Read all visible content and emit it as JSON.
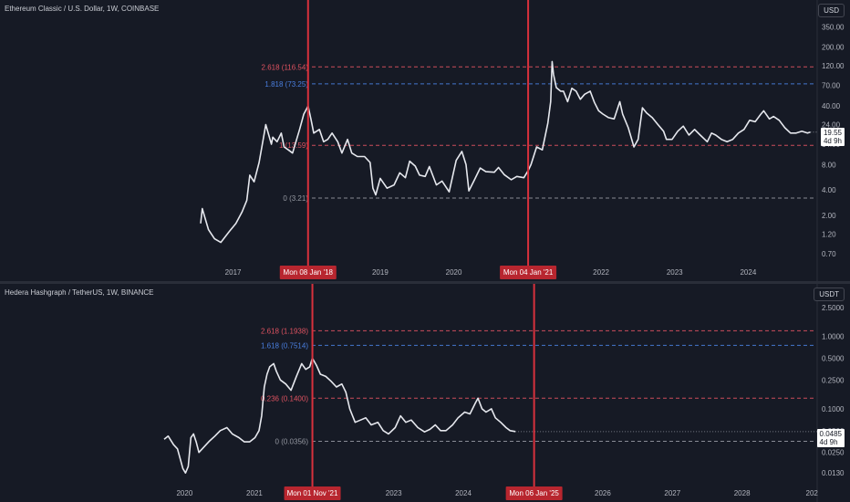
{
  "chart_data": [
    {
      "type": "line",
      "title": "Ethereum Classic / U.S. Dollar, 1W, COINBASE",
      "currency": "USD",
      "scale": "log",
      "ylim": [
        0.6,
        400
      ],
      "x_ticks": [
        "2017",
        "2019",
        "2020",
        "2022",
        "2023",
        "2024"
      ],
      "x_tick_dates": [
        "2017-01-01",
        "2019-01-01",
        "2020-01-01",
        "2022-01-01",
        "2023-01-01",
        "2024-01-01"
      ],
      "y_ticks": [
        "350.00",
        "200.00",
        "120.00",
        "70.00",
        "40.00",
        "24.00",
        "14.00",
        "8.00",
        "4.00",
        "2.00",
        "1.20",
        "0.70"
      ],
      "last_price": "19.55",
      "countdown": "4d 9h",
      "fib_levels": [
        {
          "label": "2.618 (116.54)",
          "value": 116.54,
          "color": "#e05361"
        },
        {
          "label": "1.818 (73.25)",
          "value": 73.25,
          "color": "#4a7fe0"
        },
        {
          "label": "1 (13.59)",
          "value": 13.59,
          "color": "#e05361"
        },
        {
          "label": "0 (3.21)",
          "value": 3.21,
          "color": "#9598a1"
        }
      ],
      "vlines": [
        {
          "label": "Mon 08 Jan '18",
          "date": "2018-01-08"
        },
        {
          "label": "Mon 04 Jan '21",
          "date": "2021-01-04"
        }
      ],
      "series": [
        {
          "values": [
            [
              "2016-07-24",
              1.6
            ],
            [
              "2016-08-01",
              2.4
            ],
            [
              "2016-09-01",
              1.35
            ],
            [
              "2016-10-01",
              1.05
            ],
            [
              "2016-11-01",
              0.95
            ],
            [
              "2016-12-15",
              1.3
            ],
            [
              "2017-01-15",
              1.6
            ],
            [
              "2017-02-15",
              2.2
            ],
            [
              "2017-03-10",
              3.0
            ],
            [
              "2017-03-25",
              6.0
            ],
            [
              "2017-04-15",
              5.0
            ],
            [
              "2017-05-10",
              8.5
            ],
            [
              "2017-06-05",
              19
            ],
            [
              "2017-06-12",
              24
            ],
            [
              "2017-07-10",
              14
            ],
            [
              "2017-07-17",
              17
            ],
            [
              "2017-08-07",
              15
            ],
            [
              "2017-08-28",
              19
            ],
            [
              "2017-09-11",
              13
            ],
            [
              "2017-10-02",
              12
            ],
            [
              "2017-10-23",
              11
            ],
            [
              "2017-11-27",
              21
            ],
            [
              "2017-12-18",
              32
            ],
            [
              "2018-01-01",
              37
            ],
            [
              "2018-01-08",
              40
            ],
            [
              "2018-01-22",
              28
            ],
            [
              "2018-02-05",
              19
            ],
            [
              "2018-03-05",
              21
            ],
            [
              "2018-03-26",
              15
            ],
            [
              "2018-04-16",
              16
            ],
            [
              "2018-05-07",
              19
            ],
            [
              "2018-06-04",
              15
            ],
            [
              "2018-06-25",
              11
            ],
            [
              "2018-07-23",
              16
            ],
            [
              "2018-08-13",
              11
            ],
            [
              "2018-09-10",
              10
            ],
            [
              "2018-10-15",
              10
            ],
            [
              "2018-11-12",
              8.5
            ],
            [
              "2018-11-26",
              4.2
            ],
            [
              "2018-12-10",
              3.5
            ],
            [
              "2019-01-01",
              5.5
            ],
            [
              "2019-02-04",
              4.2
            ],
            [
              "2019-03-11",
              4.6
            ],
            [
              "2019-04-08",
              6.4
            ],
            [
              "2019-05-06",
              5.6
            ],
            [
              "2019-05-27",
              8.8
            ],
            [
              "2019-06-24",
              7.7
            ],
            [
              "2019-07-15",
              6.0
            ],
            [
              "2019-08-12",
              5.8
            ],
            [
              "2019-09-02",
              7.6
            ],
            [
              "2019-10-07",
              4.6
            ],
            [
              "2019-11-04",
              5.1
            ],
            [
              "2019-12-09",
              3.8
            ],
            [
              "2020-01-13",
              9.0
            ],
            [
              "2020-02-10",
              11.5
            ],
            [
              "2020-03-02",
              8.0
            ],
            [
              "2020-03-16",
              3.9
            ],
            [
              "2020-04-13",
              5.3
            ],
            [
              "2020-05-11",
              7.3
            ],
            [
              "2020-06-08",
              6.6
            ],
            [
              "2020-07-20",
              6.5
            ],
            [
              "2020-08-10",
              7.4
            ],
            [
              "2020-09-07",
              6.1
            ],
            [
              "2020-10-12",
              5.3
            ],
            [
              "2020-11-09",
              5.8
            ],
            [
              "2020-12-14",
              5.6
            ],
            [
              "2021-01-04",
              6.8
            ],
            [
              "2021-01-18",
              8.0
            ],
            [
              "2021-02-15",
              13
            ],
            [
              "2021-03-15",
              12
            ],
            [
              "2021-04-12",
              25
            ],
            [
              "2021-04-26",
              45
            ],
            [
              "2021-05-03",
              135
            ],
            [
              "2021-05-10",
              95
            ],
            [
              "2021-05-24",
              66
            ],
            [
              "2021-06-14",
              60
            ],
            [
              "2021-06-28",
              60
            ],
            [
              "2021-07-19",
              45
            ],
            [
              "2021-08-09",
              65
            ],
            [
              "2021-08-30",
              60
            ],
            [
              "2021-09-20",
              48
            ],
            [
              "2021-10-11",
              55
            ],
            [
              "2021-11-08",
              60
            ],
            [
              "2021-11-29",
              44
            ],
            [
              "2021-12-20",
              35
            ],
            [
              "2022-01-10",
              32
            ],
            [
              "2022-02-07",
              29
            ],
            [
              "2022-03-07",
              28
            ],
            [
              "2022-04-04",
              45
            ],
            [
              "2022-04-18",
              32
            ],
            [
              "2022-05-16",
              22
            ],
            [
              "2022-06-13",
              13
            ],
            [
              "2022-07-04",
              16
            ],
            [
              "2022-07-25",
              38
            ],
            [
              "2022-08-15",
              33
            ],
            [
              "2022-09-12",
              29
            ],
            [
              "2022-10-10",
              24
            ],
            [
              "2022-11-07",
              20
            ],
            [
              "2022-11-21",
              16
            ],
            [
              "2022-12-19",
              16
            ],
            [
              "2023-01-16",
              20
            ],
            [
              "2023-02-13",
              23
            ],
            [
              "2023-03-13",
              18
            ],
            [
              "2023-04-10",
              21
            ],
            [
              "2023-05-08",
              18
            ],
            [
              "2023-06-12",
              15
            ],
            [
              "2023-07-03",
              19
            ],
            [
              "2023-07-24",
              18
            ],
            [
              "2023-08-21",
              16
            ],
            [
              "2023-09-18",
              15
            ],
            [
              "2023-10-16",
              16
            ],
            [
              "2023-11-13",
              19
            ],
            [
              "2023-12-11",
              21
            ],
            [
              "2024-01-08",
              27
            ],
            [
              "2024-02-05",
              26
            ],
            [
              "2024-03-04",
              32
            ],
            [
              "2024-03-18",
              35
            ],
            [
              "2024-04-15",
              28
            ],
            [
              "2024-05-06",
              30
            ],
            [
              "2024-06-03",
              27
            ],
            [
              "2024-07-01",
              22
            ],
            [
              "2024-07-29",
              19
            ],
            [
              "2024-08-26",
              19
            ],
            [
              "2024-09-23",
              20
            ],
            [
              "2024-10-21",
              19
            ],
            [
              "2024-11-04",
              19.55
            ]
          ]
        }
      ]
    },
    {
      "type": "line",
      "title": "Hedera Hashgraph / TetherUS, 1W, BINANCE",
      "currency": "USDT",
      "scale": "log",
      "ylim": [
        0.011,
        2.8
      ],
      "x_ticks": [
        "2020",
        "2021",
        "2023",
        "2024",
        "2026",
        "2027",
        "2028",
        "202"
      ],
      "x_tick_dates": [
        "2020-01-01",
        "2021-01-01",
        "2023-01-01",
        "2024-01-01",
        "2026-01-01",
        "2027-01-01",
        "2028-01-01",
        "2029-01-01"
      ],
      "y_ticks": [
        "2.5000",
        "1.0000",
        "0.5000",
        "0.2500",
        "0.1000",
        "0.0500",
        "0.0250",
        "0.0130"
      ],
      "last_price": "0.0485",
      "countdown": "4d 9h",
      "fib_levels": [
        {
          "label": "2.618 (1.1938)",
          "value": 1.1938,
          "color": "#e05361"
        },
        {
          "label": "1.618 (0.7514)",
          "value": 0.7514,
          "color": "#4a7fe0"
        },
        {
          "label": "0.236 (0.1400)",
          "value": 0.14,
          "color": "#e05361"
        },
        {
          "label": "0 (0.0356)",
          "value": 0.0356,
          "color": "#9598a1"
        }
      ],
      "vlines": [
        {
          "label": "Mon 01 Nov '21",
          "date": "2021-11-01"
        },
        {
          "label": "Mon 06 Jan '25",
          "date": "2025-01-06"
        }
      ],
      "series": [
        {
          "values": [
            [
              "2019-09-16",
              0.038
            ],
            [
              "2019-10-07",
              0.042
            ],
            [
              "2019-11-04",
              0.032
            ],
            [
              "2019-11-25",
              0.028
            ],
            [
              "2019-12-23",
              0.015
            ],
            [
              "2020-01-06",
              0.013
            ],
            [
              "2020-01-20",
              0.016
            ],
            [
              "2020-02-03",
              0.04
            ],
            [
              "2020-02-17",
              0.045
            ],
            [
              "2020-03-02",
              0.035
            ],
            [
              "2020-03-16",
              0.025
            ],
            [
              "2020-04-13",
              0.03
            ],
            [
              "2020-05-11",
              0.036
            ],
            [
              "2020-06-08",
              0.042
            ],
            [
              "2020-07-06",
              0.05
            ],
            [
              "2020-08-10",
              0.055
            ],
            [
              "2020-09-07",
              0.045
            ],
            [
              "2020-10-12",
              0.04
            ],
            [
              "2020-11-09",
              0.035
            ],
            [
              "2020-12-07",
              0.035
            ],
            [
              "2021-01-04",
              0.04
            ],
            [
              "2021-01-25",
              0.05
            ],
            [
              "2021-02-08",
              0.08
            ],
            [
              "2021-02-22",
              0.2
            ],
            [
              "2021-03-08",
              0.3
            ],
            [
              "2021-03-22",
              0.38
            ],
            [
              "2021-04-12",
              0.42
            ],
            [
              "2021-04-26",
              0.33
            ],
            [
              "2021-05-17",
              0.25
            ],
            [
              "2021-06-14",
              0.22
            ],
            [
              "2021-07-12",
              0.18
            ],
            [
              "2021-08-09",
              0.28
            ],
            [
              "2021-09-06",
              0.42
            ],
            [
              "2021-09-27",
              0.35
            ],
            [
              "2021-10-18",
              0.38
            ],
            [
              "2021-11-01",
              0.5
            ],
            [
              "2021-11-22",
              0.4
            ],
            [
              "2021-12-13",
              0.3
            ],
            [
              "2022-01-10",
              0.28
            ],
            [
              "2022-02-07",
              0.24
            ],
            [
              "2022-03-07",
              0.2
            ],
            [
              "2022-04-04",
              0.22
            ],
            [
              "2022-04-25",
              0.17
            ],
            [
              "2022-05-16",
              0.1
            ],
            [
              "2022-06-13",
              0.065
            ],
            [
              "2022-07-11",
              0.07
            ],
            [
              "2022-08-08",
              0.075
            ],
            [
              "2022-09-05",
              0.06
            ],
            [
              "2022-10-10",
              0.065
            ],
            [
              "2022-11-07",
              0.05
            ],
            [
              "2022-12-05",
              0.045
            ],
            [
              "2023-01-09",
              0.055
            ],
            [
              "2023-02-06",
              0.08
            ],
            [
              "2023-03-06",
              0.065
            ],
            [
              "2023-04-03",
              0.07
            ],
            [
              "2023-05-08",
              0.055
            ],
            [
              "2023-06-12",
              0.048
            ],
            [
              "2023-07-10",
              0.052
            ],
            [
              "2023-08-07",
              0.06
            ],
            [
              "2023-09-04",
              0.05
            ],
            [
              "2023-10-02",
              0.05
            ],
            [
              "2023-11-06",
              0.06
            ],
            [
              "2023-12-04",
              0.075
            ],
            [
              "2024-01-08",
              0.09
            ],
            [
              "2024-02-05",
              0.085
            ],
            [
              "2024-03-04",
              0.12
            ],
            [
              "2024-03-18",
              0.14
            ],
            [
              "2024-04-08",
              0.1
            ],
            [
              "2024-04-29",
              0.09
            ],
            [
              "2024-05-27",
              0.1
            ],
            [
              "2024-06-17",
              0.075
            ],
            [
              "2024-07-15",
              0.065
            ],
            [
              "2024-08-12",
              0.055
            ],
            [
              "2024-09-02",
              0.05
            ],
            [
              "2024-09-30",
              0.0485
            ]
          ]
        }
      ]
    }
  ]
}
